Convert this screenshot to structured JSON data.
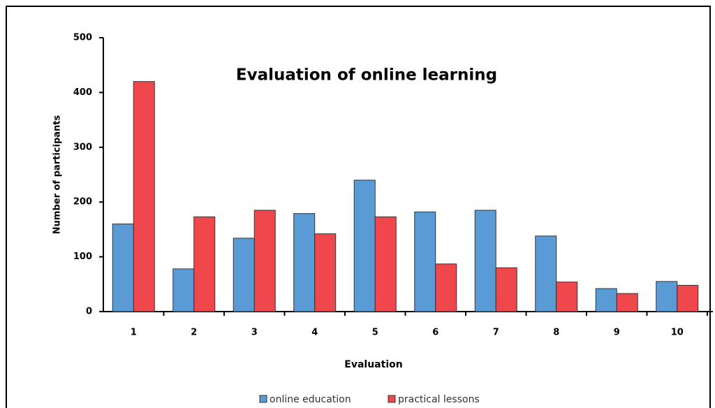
{
  "chart_data": {
    "type": "bar",
    "title": "Evaluation of online learning",
    "x_label": "Evaluation",
    "y_label": "Number of participants",
    "categories": [
      "1",
      "2",
      "3",
      "4",
      "5",
      "6",
      "7",
      "8",
      "9",
      "10"
    ],
    "series": [
      {
        "name": "online education",
        "color": "#5b9bd5",
        "values": [
          160,
          78,
          134,
          179,
          240,
          182,
          185,
          138,
          42,
          55
        ]
      },
      {
        "name": "practical lessons",
        "color": "#f0474c",
        "values": [
          420,
          173,
          185,
          142,
          173,
          87,
          80,
          54,
          33,
          48
        ]
      }
    ],
    "ylim": [
      0,
      500
    ],
    "yticks": [
      0,
      100,
      200,
      300,
      400,
      500
    ],
    "legend": "bottom"
  }
}
